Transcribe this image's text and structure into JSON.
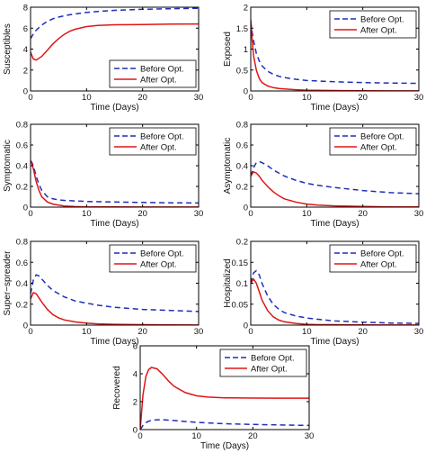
{
  "colors": {
    "before": "#1f2fb8",
    "after": "#e01515",
    "axis": "#000000"
  },
  "legend_labels": {
    "before": "Before Opt.",
    "after": "After Opt."
  },
  "chart_data": [
    {
      "type": "line",
      "ylabel": "Susceptibles",
      "xlabel": "Time (Days)",
      "xlim": [
        0,
        30
      ],
      "ylim": [
        0,
        8
      ],
      "xticks": [
        "0",
        "10",
        "20",
        "30"
      ],
      "yticks": [
        "0",
        "2",
        "4",
        "6",
        "8"
      ],
      "legend_position": "bottom-right",
      "x": [
        0,
        0.5,
        1,
        2,
        3,
        4,
        5,
        6,
        7,
        8,
        10,
        12,
        15,
        20,
        25,
        30
      ],
      "series": [
        {
          "name": "Before Opt.",
          "values": [
            5.0,
            5.45,
            5.8,
            6.3,
            6.65,
            6.9,
            7.05,
            7.18,
            7.28,
            7.36,
            7.5,
            7.6,
            7.7,
            7.8,
            7.85,
            7.9
          ]
        },
        {
          "name": "After Opt.",
          "values": [
            3.7,
            3.05,
            2.95,
            3.3,
            3.9,
            4.5,
            5.0,
            5.4,
            5.7,
            5.9,
            6.15,
            6.25,
            6.32,
            6.35,
            6.38,
            6.4
          ]
        }
      ]
    },
    {
      "type": "line",
      "ylabel": "Exposed",
      "xlabel": "Time (Days)",
      "xlim": [
        0,
        30
      ],
      "ylim": [
        0,
        2
      ],
      "xticks": [
        "0",
        "10",
        "20",
        "30"
      ],
      "yticks": [
        "0",
        "0.5",
        "1",
        "1.5",
        "2"
      ],
      "legend_position": "top-right",
      "x": [
        0,
        0.25,
        0.5,
        1,
        1.5,
        2,
        3,
        4,
        5,
        6,
        8,
        10,
        15,
        20,
        25,
        30
      ],
      "series": [
        {
          "name": "Before Opt.",
          "values": [
            1.65,
            1.4,
            1.2,
            0.9,
            0.72,
            0.6,
            0.47,
            0.4,
            0.35,
            0.32,
            0.28,
            0.25,
            0.22,
            0.2,
            0.19,
            0.18
          ]
        },
        {
          "name": "After Opt.",
          "values": [
            1.7,
            1.2,
            0.85,
            0.5,
            0.3,
            0.2,
            0.12,
            0.08,
            0.06,
            0.05,
            0.03,
            0.02,
            0.01,
            0.005,
            0.003,
            0.002
          ]
        }
      ]
    },
    {
      "type": "line",
      "ylabel": "Symptomatic",
      "xlabel": "Time (Days)",
      "xlim": [
        0,
        30
      ],
      "ylim": [
        0,
        0.8
      ],
      "xticks": [
        "0",
        "10",
        "20",
        "30"
      ],
      "yticks": [
        "0",
        "0.2",
        "0.4",
        "0.6",
        "0.8"
      ],
      "legend_position": "top-right",
      "x": [
        0,
        0.25,
        0.5,
        1,
        1.5,
        2,
        3,
        4,
        5,
        6,
        8,
        10,
        15,
        20,
        25,
        30
      ],
      "series": [
        {
          "name": "Before Opt.",
          "values": [
            0.45,
            0.43,
            0.4,
            0.3,
            0.22,
            0.16,
            0.1,
            0.08,
            0.07,
            0.065,
            0.06,
            0.055,
            0.05,
            0.045,
            0.042,
            0.04
          ]
        },
        {
          "name": "After Opt.",
          "values": [
            0.45,
            0.42,
            0.37,
            0.25,
            0.16,
            0.1,
            0.05,
            0.03,
            0.02,
            0.01,
            0.005,
            0.003,
            0.002,
            0.001,
            0.001,
            0.001
          ]
        }
      ]
    },
    {
      "type": "line",
      "ylabel": "Asymptomatic",
      "xlabel": "Time (Days)",
      "xlim": [
        0,
        30
      ],
      "ylim": [
        0,
        0.8
      ],
      "xticks": [
        "0",
        "10",
        "20",
        "30"
      ],
      "yticks": [
        "0",
        "0.2",
        "0.4",
        "0.6",
        "0.8"
      ],
      "legend_position": "top-right",
      "x": [
        0,
        0.5,
        1,
        1.5,
        2,
        3,
        4,
        5,
        6,
        8,
        10,
        12,
        15,
        20,
        25,
        30
      ],
      "series": [
        {
          "name": "Before Opt.",
          "values": [
            0.3,
            0.38,
            0.43,
            0.44,
            0.43,
            0.4,
            0.36,
            0.33,
            0.3,
            0.26,
            0.23,
            0.21,
            0.19,
            0.16,
            0.14,
            0.13
          ]
        },
        {
          "name": "After Opt.",
          "values": [
            0.3,
            0.34,
            0.33,
            0.3,
            0.26,
            0.2,
            0.15,
            0.11,
            0.08,
            0.05,
            0.03,
            0.02,
            0.012,
            0.006,
            0.003,
            0.002
          ]
        }
      ]
    },
    {
      "type": "line",
      "ylabel": "Super−spreader",
      "xlabel": "Time (Days)",
      "xlim": [
        0,
        30
      ],
      "ylim": [
        0,
        0.8
      ],
      "xticks": [
        "0",
        "10",
        "20",
        "30"
      ],
      "yticks": [
        "0",
        "0.2",
        "0.4",
        "0.6",
        "0.8"
      ],
      "legend_position": "top-right",
      "x": [
        0,
        0.5,
        1,
        1.5,
        2,
        3,
        4,
        5,
        6,
        8,
        10,
        12,
        15,
        20,
        25,
        30
      ],
      "series": [
        {
          "name": "Before Opt.",
          "values": [
            0.3,
            0.43,
            0.48,
            0.47,
            0.44,
            0.38,
            0.33,
            0.3,
            0.27,
            0.23,
            0.21,
            0.19,
            0.17,
            0.15,
            0.14,
            0.13
          ]
        },
        {
          "name": "After Opt.",
          "values": [
            0.25,
            0.31,
            0.3,
            0.26,
            0.22,
            0.15,
            0.1,
            0.07,
            0.05,
            0.03,
            0.02,
            0.012,
            0.008,
            0.004,
            0.002,
            0.001
          ]
        }
      ]
    },
    {
      "type": "line",
      "ylabel": "Hospitalized",
      "xlabel": "Time (Days)",
      "xlim": [
        0,
        30
      ],
      "ylim": [
        0,
        0.2
      ],
      "xticks": [
        "0",
        "10",
        "20",
        "30"
      ],
      "yticks": [
        "0",
        "0.05",
        "0.1",
        "0.15",
        "0.2"
      ],
      "legend_position": "top-right",
      "x": [
        0,
        0.5,
        1,
        1.5,
        2,
        3,
        4,
        5,
        6,
        8,
        10,
        12,
        15,
        20,
        25,
        30
      ],
      "series": [
        {
          "name": "Before Opt.",
          "values": [
            0.1,
            0.125,
            0.13,
            0.12,
            0.1,
            0.07,
            0.05,
            0.038,
            0.03,
            0.022,
            0.017,
            0.014,
            0.01,
            0.007,
            0.005,
            0.004
          ]
        },
        {
          "name": "After Opt.",
          "values": [
            0.1,
            0.11,
            0.1,
            0.08,
            0.06,
            0.035,
            0.02,
            0.012,
            0.008,
            0.004,
            0.002,
            0.001,
            0.001,
            0.0005,
            0.0003,
            0.0002
          ]
        }
      ]
    },
    {
      "type": "line",
      "ylabel": "Recovered",
      "xlabel": "Time (Days)",
      "xlim": [
        0,
        30
      ],
      "ylim": [
        0,
        6
      ],
      "xticks": [
        "0",
        "10",
        "20",
        "30"
      ],
      "yticks": [
        "0",
        "2",
        "4",
        "6"
      ],
      "legend_position": "top-right",
      "x": [
        0,
        0.5,
        1,
        1.5,
        2,
        3,
        4,
        5,
        6,
        8,
        10,
        12,
        15,
        20,
        25,
        30
      ],
      "series": [
        {
          "name": "Before Opt.",
          "values": [
            0.0,
            0.3,
            0.5,
            0.6,
            0.66,
            0.7,
            0.7,
            0.68,
            0.65,
            0.58,
            0.52,
            0.48,
            0.42,
            0.37,
            0.33,
            0.3
          ]
        },
        {
          "name": "After Opt.",
          "values": [
            0.0,
            2.5,
            3.8,
            4.3,
            4.45,
            4.35,
            3.95,
            3.5,
            3.1,
            2.65,
            2.42,
            2.33,
            2.28,
            2.26,
            2.25,
            2.25
          ]
        }
      ]
    }
  ]
}
